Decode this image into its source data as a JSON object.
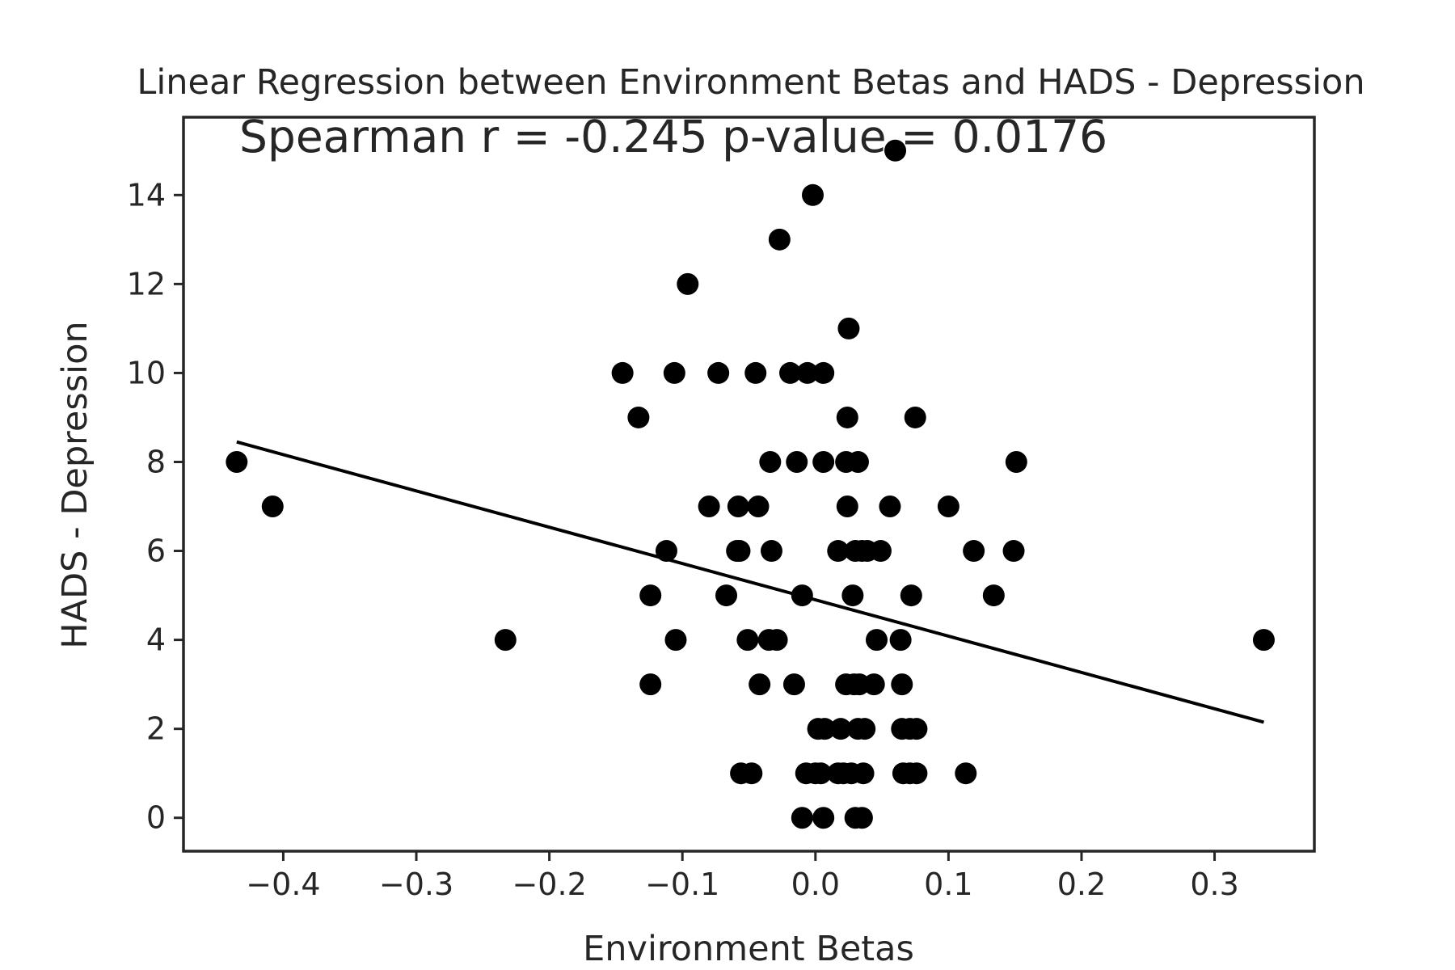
{
  "chart_data": {
    "type": "scatter",
    "title": "Linear Regression between Environment Betas and HADS - Depression",
    "annotation": "Spearman r = -0.245  p-value = 0.0176",
    "xlabel": "Environment Betas",
    "ylabel": "HADS - Depression",
    "xlim": [
      -0.475,
      0.375
    ],
    "ylim": [
      -0.75,
      15.75
    ],
    "xticks": [
      -0.4,
      -0.3,
      -0.2,
      -0.1,
      0.0,
      0.1,
      0.2,
      0.3
    ],
    "xtick_labels": [
      "−0.4",
      "−0.3",
      "−0.2",
      "−0.1",
      "0.0",
      "0.1",
      "0.2",
      "0.3"
    ],
    "yticks": [
      0,
      2,
      4,
      6,
      8,
      10,
      12,
      14
    ],
    "ytick_labels": [
      "0",
      "2",
      "4",
      "6",
      "8",
      "10",
      "12",
      "14"
    ],
    "grid": false,
    "points_color": "#000000",
    "points": [
      [
        -0.435,
        8
      ],
      [
        -0.408,
        7
      ],
      [
        -0.233,
        4
      ],
      [
        -0.145,
        10
      ],
      [
        -0.133,
        9
      ],
      [
        -0.124,
        5
      ],
      [
        -0.124,
        3
      ],
      [
        -0.112,
        6
      ],
      [
        -0.106,
        10
      ],
      [
        -0.105,
        4
      ],
      [
        -0.096,
        12
      ],
      [
        -0.08,
        7
      ],
      [
        -0.073,
        10
      ],
      [
        -0.067,
        5
      ],
      [
        -0.058,
        7
      ],
      [
        -0.059,
        6
      ],
      [
        -0.057,
        6
      ],
      [
        -0.056,
        1
      ],
      [
        -0.051,
        4
      ],
      [
        -0.048,
        1
      ],
      [
        -0.045,
        10
      ],
      [
        -0.043,
        7
      ],
      [
        -0.042,
        3
      ],
      [
        -0.034,
        8
      ],
      [
        -0.033,
        6
      ],
      [
        -0.035,
        4
      ],
      [
        -0.029,
        4
      ],
      [
        -0.027,
        13
      ],
      [
        -0.019,
        10
      ],
      [
        -0.016,
        3
      ],
      [
        -0.014,
        8
      ],
      [
        -0.01,
        5
      ],
      [
        -0.01,
        0
      ],
      [
        -0.007,
        1
      ],
      [
        -0.006,
        10
      ],
      [
        -0.002,
        14
      ],
      [
        0.0,
        1
      ],
      [
        0.002,
        2
      ],
      [
        0.004,
        1
      ],
      [
        0.006,
        8
      ],
      [
        0.006,
        10
      ],
      [
        0.006,
        0
      ],
      [
        0.007,
        2
      ],
      [
        0.017,
        6
      ],
      [
        0.017,
        1
      ],
      [
        0.019,
        2
      ],
      [
        0.021,
        1
      ],
      [
        0.023,
        8
      ],
      [
        0.023,
        3
      ],
      [
        0.024,
        9
      ],
      [
        0.024,
        7
      ],
      [
        0.025,
        11
      ],
      [
        0.027,
        1
      ],
      [
        0.028,
        5
      ],
      [
        0.029,
        3
      ],
      [
        0.03,
        6
      ],
      [
        0.03,
        0
      ],
      [
        0.032,
        8
      ],
      [
        0.032,
        2
      ],
      [
        0.033,
        3
      ],
      [
        0.035,
        6
      ],
      [
        0.035,
        0
      ],
      [
        0.036,
        1
      ],
      [
        0.037,
        2
      ],
      [
        0.039,
        6
      ],
      [
        0.044,
        3
      ],
      [
        0.046,
        4
      ],
      [
        0.049,
        6
      ],
      [
        0.056,
        7
      ],
      [
        0.06,
        15
      ],
      [
        0.064,
        4
      ],
      [
        0.065,
        3
      ],
      [
        0.065,
        2
      ],
      [
        0.066,
        1
      ],
      [
        0.071,
        1
      ],
      [
        0.071,
        2
      ],
      [
        0.072,
        5
      ],
      [
        0.075,
        9
      ],
      [
        0.076,
        1
      ],
      [
        0.076,
        2
      ],
      [
        0.1,
        7
      ],
      [
        0.113,
        1
      ],
      [
        0.119,
        6
      ],
      [
        0.134,
        5
      ],
      [
        0.149,
        6
      ],
      [
        0.151,
        8
      ],
      [
        0.337,
        4
      ]
    ],
    "regression_line": {
      "x": [
        -0.435,
        0.337
      ],
      "y": [
        8.45,
        2.15
      ]
    }
  }
}
